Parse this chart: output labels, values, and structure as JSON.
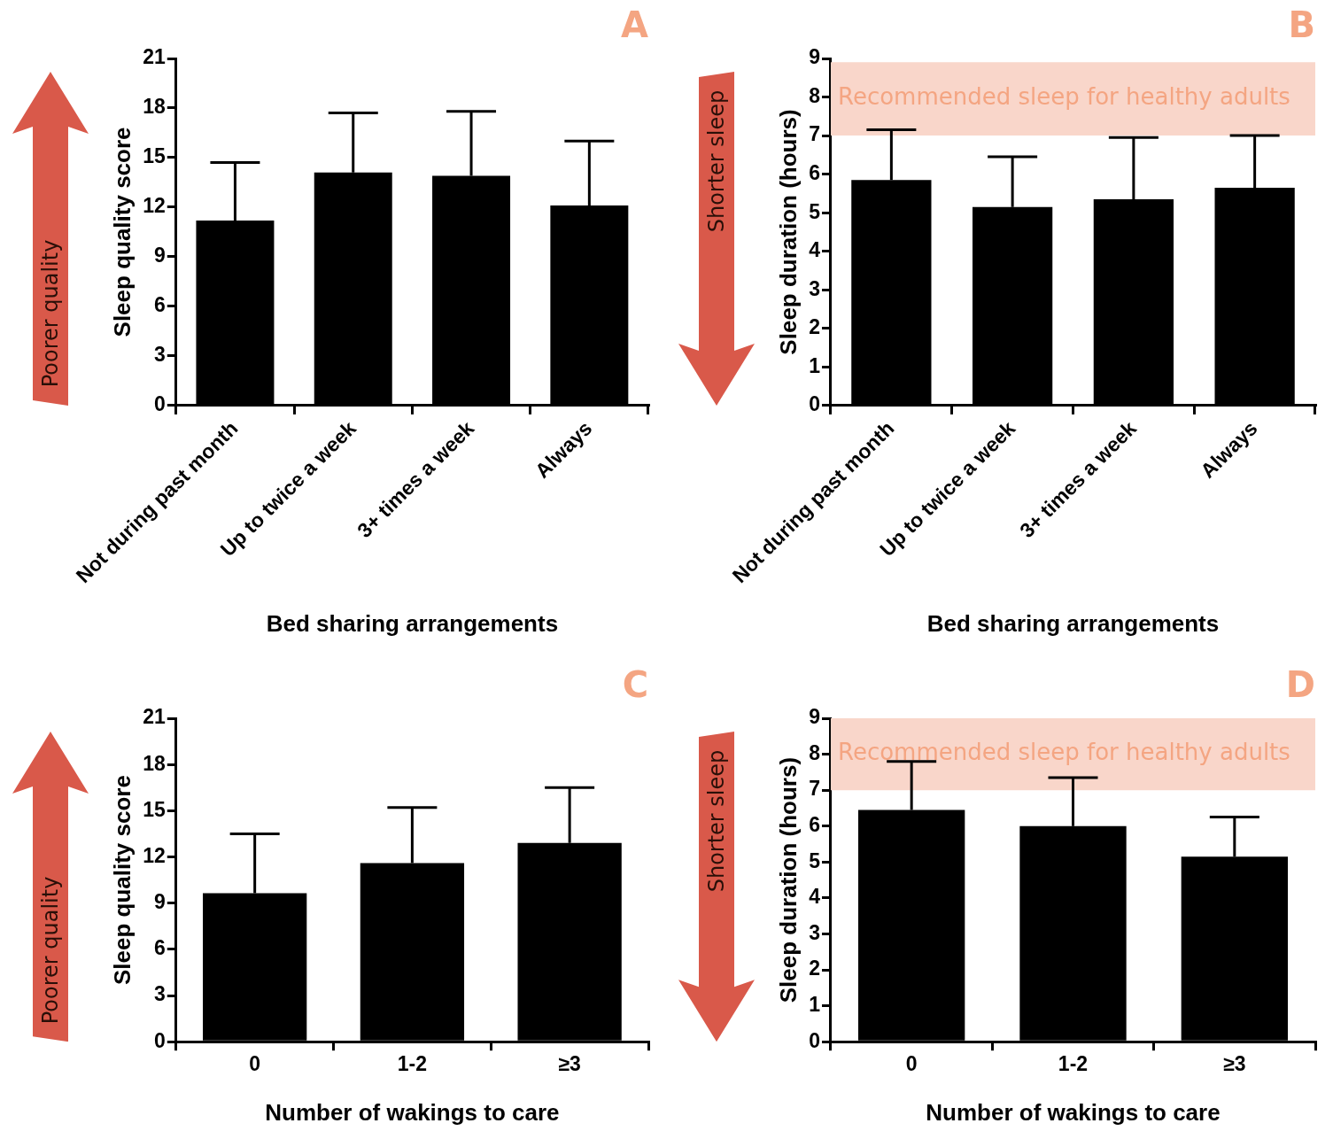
{
  "chart_data": [
    {
      "type": "bar",
      "title": "A",
      "categories": [
        "Not during past month",
        "Up to twice a week",
        "3+ times a week",
        "Always"
      ],
      "values": [
        11.2,
        14.1,
        13.9,
        12.1
      ],
      "color": "#000000",
      "errors": [
        [
          11.2,
          14.7
        ],
        [
          14.1,
          17.7
        ],
        [
          13.9,
          17.8
        ],
        [
          12.1,
          16.0
        ]
      ],
      "xlabel": "Bed sharing arrangements",
      "ylabel": "Sleep quality score",
      "ylim": [
        0,
        21
      ],
      "yticks": [
        0,
        3,
        6,
        9,
        12,
        15,
        18,
        21
      ],
      "annotations": [
        "Poorer quality"
      ]
    },
    {
      "type": "bar",
      "title": "B",
      "categories": [
        "Not during past month",
        "Up to twice a week",
        "3+ times a week",
        "Always"
      ],
      "values": [
        5.85,
        5.15,
        5.35,
        5.65
      ],
      "color": "#000000",
      "errors": [
        [
          5.85,
          7.15
        ],
        [
          5.15,
          6.45
        ],
        [
          5.35,
          6.95
        ],
        [
          5.65,
          7.0
        ]
      ],
      "xlabel": "Bed sharing arrangements",
      "ylabel": "Sleep duration (hours)",
      "ylim": [
        0,
        9
      ],
      "yticks": [
        0,
        1,
        2,
        3,
        4,
        5,
        6,
        7,
        8,
        9
      ],
      "bands": [
        {
          "axis": "y",
          "from": 7,
          "to": 8.9,
          "label": "Recommended sleep for healthy adults",
          "color": "#f9d6ca"
        }
      ],
      "annotations": [
        "Shorter sleep"
      ]
    },
    {
      "type": "bar",
      "title": "C",
      "categories": [
        "0",
        "1-2",
        "≥3"
      ],
      "values": [
        9.65,
        11.6,
        12.9
      ],
      "color": "#000000",
      "errors": [
        [
          9.65,
          13.5
        ],
        [
          11.6,
          15.2
        ],
        [
          12.9,
          16.5
        ]
      ],
      "xlabel": "Number of wakings to care",
      "ylabel": "Sleep quality score",
      "ylim": [
        0,
        21
      ],
      "yticks": [
        0,
        3,
        6,
        9,
        12,
        15,
        18,
        21
      ],
      "annotations": [
        "Poorer quality"
      ]
    },
    {
      "type": "bar",
      "title": "D",
      "categories": [
        "0",
        "1-2",
        "≥3"
      ],
      "values": [
        6.45,
        6.0,
        5.15
      ],
      "color": "#000000",
      "errors": [
        [
          6.45,
          7.8
        ],
        [
          6.0,
          7.35
        ],
        [
          5.15,
          6.25
        ]
      ],
      "xlabel": "Number of wakings to care",
      "ylabel": "Sleep duration (hours)",
      "ylim": [
        0,
        9
      ],
      "yticks": [
        0,
        1,
        2,
        3,
        4,
        5,
        6,
        7,
        8,
        9
      ],
      "bands": [
        {
          "axis": "y",
          "from": 7,
          "to": 9,
          "label": "Recommended sleep for healthy adults",
          "color": "#f9d6ca"
        }
      ],
      "annotations": [
        "Shorter sleep"
      ]
    }
  ]
}
